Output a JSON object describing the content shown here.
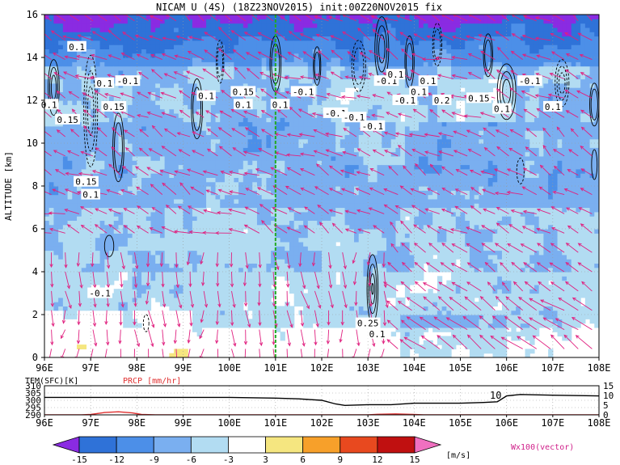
{
  "chart_data": [
    {
      "type": "heatmap",
      "title": "NICAM U (4S) (18Z23NOV2015) init:00Z20NOV2015 fix",
      "ylabel": "ALTITUDE [km]",
      "xlim": [
        96,
        108
      ],
      "ylim": [
        0,
        16
      ],
      "x_ticks": [
        "96E",
        "97E",
        "98E",
        "99E",
        "100E",
        "101E",
        "102E",
        "103E",
        "104E",
        "105E",
        "106E",
        "107E",
        "108E"
      ],
      "y_ticks": [
        "0",
        "2",
        "4",
        "6",
        "8",
        "10",
        "12",
        "14",
        "16"
      ],
      "grid": true,
      "marker_line_x": 101,
      "marker_line_color": "#22aa22",
      "contour_labels": [
        "0.1",
        "0.1",
        "0.15",
        "0.15",
        "0.1",
        "-0.1",
        "0.1",
        "0.15",
        "0.1",
        "-0.1",
        "0.1",
        "-0.1",
        "-0.1",
        "-0.1",
        "-0.1",
        "0.1",
        "0.1",
        "0.2",
        "0.15",
        "0.1",
        "0.1",
        "-0.1",
        "-0.1",
        "0.1",
        "0.15",
        "0.1",
        "-0.1",
        "0.25",
        "0.1"
      ],
      "vector_color": "#e0207f"
    },
    {
      "type": "line",
      "left_label": "TEM(SFC)[K]",
      "right_label": "PRCP [mm/hr]",
      "left_ticks": [
        "310",
        "305",
        "300",
        "295",
        "290"
      ],
      "right_ticks": [
        "15",
        "10",
        "5",
        "0"
      ],
      "x_ticks": [
        "96E",
        "97E",
        "98E",
        "99E",
        "100E",
        "101E",
        "102E",
        "103E",
        "104E",
        "105E",
        "106E",
        "107E",
        "108E"
      ],
      "annotation": "10",
      "series": [
        {
          "color": "#000000",
          "x": [
            96,
            97,
            98,
            99,
            100,
            101,
            101.5,
            102,
            102.3,
            102.5,
            103,
            103.5,
            104,
            104.5,
            105,
            105.5,
            105.8,
            106,
            106.3,
            107,
            108
          ],
          "y": [
            302,
            302,
            302,
            302,
            302,
            301.5,
            301,
            300,
            297.5,
            296.5,
            297,
            297,
            298,
            298,
            298,
            298.5,
            299,
            303,
            304,
            303.5,
            303
          ]
        },
        {
          "color": "#e03030",
          "x": [
            96,
            96.8,
            97,
            97.3,
            97.6,
            97.9,
            98.1,
            98.4,
            103,
            103.2,
            103.6,
            103.9,
            104.2,
            108
          ],
          "y": [
            0,
            0,
            0.2,
            1.2,
            1.6,
            1.0,
            0.2,
            0,
            0,
            0.3,
            0.5,
            0.3,
            0,
            0
          ]
        }
      ]
    }
  ],
  "colorbar": {
    "ticks": [
      "-15",
      "-12",
      "-9",
      "-6",
      "-3",
      "3",
      "6",
      "9",
      "12",
      "15"
    ],
    "unit": "[m/s]",
    "colors": [
      "#8a2be2",
      "#2f72d8",
      "#4c8fe8",
      "#7aaff0",
      "#b2dcf2",
      "#ffffff",
      "#f5e680",
      "#f7a02a",
      "#e8491f",
      "#c01010",
      "#f070c0"
    ]
  },
  "legend_vector": "Wx100(vector)"
}
